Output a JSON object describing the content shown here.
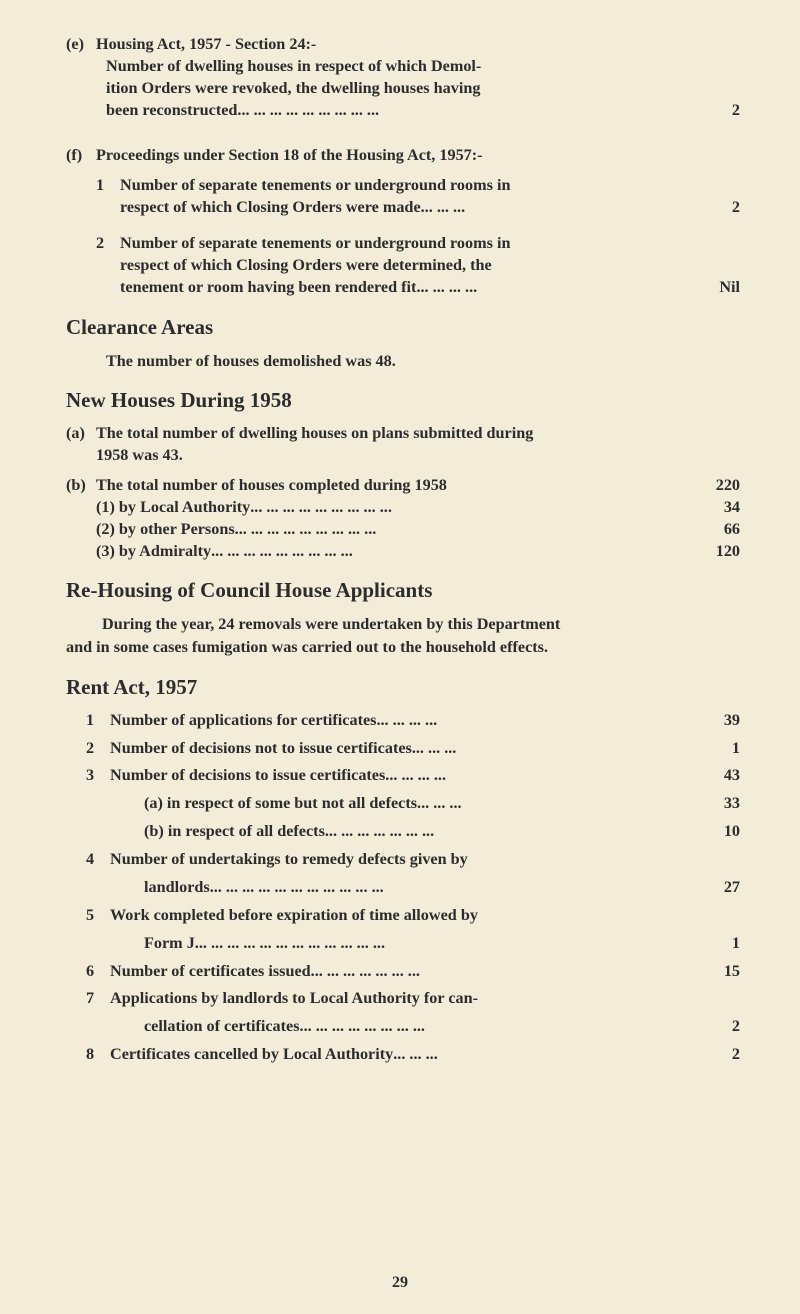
{
  "e": {
    "marker": "(e)",
    "title": "Housing Act, 1957 - Section 24:-",
    "line1": "Number of dwelling houses in respect of which Demol-",
    "line2": "ition Orders were revoked, the dwelling houses having",
    "line3_label": "been reconstructed",
    "line3_dots": "   ...   ...   ...   ...   ...   ...   ...   ...   ...",
    "value": "2"
  },
  "f": {
    "marker": "(f)",
    "title": "Proceedings under Section 18 of the Housing Act, 1957:-",
    "item1_num": "1",
    "item1_l1": "Number of separate tenements or underground rooms in",
    "item1_l2_label": "respect of which Closing Orders were made",
    "item1_l2_dots": "   ...   ...   ...",
    "item1_value": "2",
    "item2_num": "2",
    "item2_l1": "Number of separate tenements or underground rooms in",
    "item2_l2": "respect of which Closing Orders were determined, the",
    "item2_l3_label": "tenement or room having been rendered fit",
    "item2_l3_dots": " ...   ...   ...   ...",
    "item2_value": "Nil"
  },
  "clearance": {
    "heading": "Clearance Areas",
    "line": "The number of houses demolished was 48."
  },
  "newhouses": {
    "heading": "New Houses During 1958",
    "a_marker": "(a)",
    "a_l1": "The total number of dwelling houses on plans submitted during",
    "a_l2": "1958 was 43.",
    "b_marker": "(b)",
    "b_label": "The total number of houses completed during 1958",
    "b_value": "220",
    "b1_label": "(1) by Local Authority",
    "b1_dots": "   ...  ...  ...  ...  ...  ...  ...  ...  ...",
    "b1_value": "34",
    "b2_label": "(2) by other Persons",
    "b2_dots": "     ...  ...  ...  ...  ...  ...  ...  ...  ...",
    "b2_value": "66",
    "b3_label": "(3) by Admiralty",
    "b3_dots": "            ...  ...  ...  ...  ...  ...  ...  ...  ...",
    "b3_value": "120"
  },
  "rehousing": {
    "heading": "Re-Housing of Council House Applicants",
    "p1": "During the year, 24 removals were undertaken by this Department",
    "p2": "and in some cases fumigation was carried out to the household effects."
  },
  "rentact": {
    "heading": "Rent Act, 1957",
    "items": [
      {
        "n": "1",
        "label": "Number of applications for certificates",
        "dots": "      ...  ...  ...  ...",
        "val": "39"
      },
      {
        "n": "2",
        "label": "Number of decisions not to issue certificates",
        "dots": " ...   ...   ...",
        "val": "1"
      },
      {
        "n": "3",
        "label": "Number of decisions to issue certificates",
        "dots": " ...   ...   ...   ...",
        "val": "43"
      },
      {
        "n": "",
        "label": "(a) in respect of some but not all defects",
        "dots": "     ...   ...   ...",
        "val": "33",
        "indent": true
      },
      {
        "n": "",
        "label": "(b) in respect of all defects",
        "dots": "  ...   ...   ...   ...   ...   ...   ...",
        "val": "10",
        "indent": true
      },
      {
        "n": "4",
        "label": "Number of undertakings to remedy defects given by",
        "dots": "",
        "val": "",
        "multi": true
      },
      {
        "n": "",
        "label": "landlords",
        "dots": "        ...   ...   ...   ...   ...   ...   ...   ...   ...   ...   ...",
        "val": "27",
        "contline": true
      },
      {
        "n": "5",
        "label": "Work completed before expiration of time allowed by",
        "dots": "",
        "val": "",
        "multi": true
      },
      {
        "n": "",
        "label": "Form J",
        "dots": "      ...   ...   ...   ...   ...   ...   ...   ...   ...   ...   ...   ...",
        "val": "1",
        "contline": true
      },
      {
        "n": "6",
        "label": "Number of certificates issued",
        "dots": " ...   ...   ...   ...   ...   ...   ...",
        "val": "15"
      },
      {
        "n": "7",
        "label": "Applications by landlords to Local Authority for can-",
        "dots": "",
        "val": "",
        "multi": true
      },
      {
        "n": "",
        "label": "cellation of certificates",
        "dots": "  ...   ...   ...   ...   ...   ...   ...   ...",
        "val": "2",
        "contline": true
      },
      {
        "n": "8",
        "label": "Certificates cancelled by Local Authority",
        "dots": "       ...   ...   ...",
        "val": "2"
      }
    ]
  },
  "pagenum": "29"
}
